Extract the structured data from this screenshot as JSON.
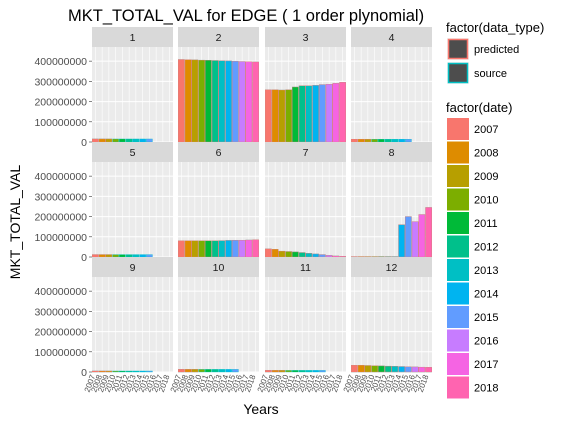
{
  "chart_data": {
    "type": "bar",
    "title": "MKT_TOTAL_VAL for EDGE ( 1  order plynomial)",
    "xlabel": "Years",
    "ylabel": "MKT_TOTAL_VAL",
    "ylim": [
      0,
      470000000
    ],
    "y_ticks": [
      0,
      100000000,
      200000000,
      300000000,
      400000000
    ],
    "y_tick_labels": [
      "0",
      "100000000",
      "200000000",
      "300000000",
      "400000000"
    ],
    "x_tick_labels": [
      "2007",
      "2008",
      "2009",
      "2010",
      "2011",
      "2012",
      "2013",
      "2014",
      "2015",
      "2016",
      "2017",
      "2018"
    ],
    "categories": [
      "2007",
      "2008",
      "2009",
      "2010",
      "2011",
      "2012",
      "2013",
      "2014",
      "2015",
      "2016",
      "2017",
      "2018"
    ],
    "grid": true,
    "facet_layout": {
      "rows": 3,
      "cols": 4
    },
    "panels": [
      {
        "name": "1",
        "source_values": [
          15000000,
          15000000,
          15000000,
          15000000,
          15000000,
          15000000,
          15000000,
          15000000,
          15000000
        ],
        "predicted_values": [
          15000000,
          15000000,
          15000000
        ]
      },
      {
        "name": "2",
        "source_values": [
          408000000,
          407000000,
          406000000,
          405000000,
          404000000,
          403000000,
          402000000,
          401000000,
          400000000,
          398000000,
          397000000,
          396000000
        ],
        "predicted_values": [
          408000000,
          407000000,
          406000000,
          405000000,
          404000000,
          403000000,
          402000000,
          401000000,
          400000000,
          398000000,
          397000000,
          396000000
        ]
      },
      {
        "name": "3",
        "source_values": [
          258000000,
          258000000,
          257000000,
          258000000,
          272000000,
          278000000,
          278000000,
          280000000,
          284000000,
          286000000,
          290000000,
          295000000
        ],
        "predicted_values": [
          258000000,
          258000000,
          257000000,
          258000000,
          272000000,
          278000000,
          278000000,
          280000000,
          284000000,
          286000000,
          290000000,
          295000000
        ]
      },
      {
        "name": "4",
        "source_values": [
          14000000,
          14000000,
          14000000,
          14000000,
          14000000,
          14000000,
          14000000,
          14000000,
          14000000
        ],
        "predicted_values": [
          14000000,
          14000000,
          14000000
        ]
      },
      {
        "name": "5",
        "source_values": [
          12000000,
          12000000,
          12000000,
          12000000,
          12000000,
          12000000,
          12000000,
          12000000,
          12000000
        ],
        "predicted_values": [
          12000000,
          12000000,
          12000000
        ]
      },
      {
        "name": "6",
        "source_values": [
          80000000,
          80000000,
          80000000,
          80000000,
          80000000,
          80000000,
          81000000,
          82000000,
          83000000,
          83000000,
          84000000,
          85000000
        ],
        "predicted_values": [
          80000000,
          80000000,
          80000000,
          80000000,
          80000000,
          80000000,
          81000000,
          82000000,
          83000000,
          83000000,
          84000000,
          85000000
        ]
      },
      {
        "name": "7",
        "source_values": [
          40000000,
          38000000,
          29000000,
          27000000,
          25000000,
          22000000,
          18000000,
          15000000,
          12000000,
          8000000,
          5000000,
          3000000
        ],
        "predicted_values": [
          40000000,
          38000000,
          29000000,
          27000000,
          25000000,
          22000000,
          18000000,
          15000000,
          12000000,
          8000000,
          5000000,
          3000000
        ]
      },
      {
        "name": "8",
        "source_values": [
          2000000,
          2000000,
          2000000,
          2000000,
          2000000,
          2000000,
          2000000,
          160000000,
          200000000,
          175000000,
          210000000,
          245000000
        ],
        "predicted_values": [
          2000000,
          2000000,
          2000000,
          2000000,
          2000000,
          2000000,
          2000000,
          160000000,
          200000000,
          175000000,
          210000000,
          245000000
        ]
      },
      {
        "name": "9",
        "source_values": [
          5000000,
          5000000,
          5000000,
          5000000,
          5000000,
          5000000,
          5000000,
          5000000,
          5000000
        ],
        "predicted_values": [
          5000000,
          5000000,
          5000000
        ]
      },
      {
        "name": "10",
        "source_values": [
          13000000,
          13000000,
          13000000,
          13000000,
          13000000,
          13000000,
          13000000,
          13000000,
          13000000
        ],
        "predicted_values": [
          13000000,
          13000000,
          13000000
        ]
      },
      {
        "name": "11",
        "source_values": [
          8000000,
          8000000,
          8000000,
          8000000,
          8000000,
          8000000,
          8000000,
          8000000,
          8000000
        ],
        "predicted_values": [
          8000000,
          8000000,
          8000000
        ]
      },
      {
        "name": "12",
        "source_values": [
          33000000,
          33000000,
          32000000,
          31000000,
          30000000,
          29000000,
          28000000,
          27000000,
          26000000,
          25000000,
          24000000,
          23000000
        ],
        "predicted_values": [
          33000000,
          33000000,
          32000000,
          31000000,
          30000000,
          29000000,
          28000000,
          27000000,
          26000000,
          25000000,
          24000000,
          23000000
        ]
      }
    ],
    "legend": {
      "placement": "right",
      "data_type_title": "factor(data_type)",
      "data_type_items": [
        {
          "label": "predicted",
          "outline": "#f8766d"
        },
        {
          "label": "source",
          "outline": "#00bfc4"
        }
      ],
      "date_title": "factor(date)",
      "date_items": [
        {
          "label": "2007",
          "color": "#f8766d"
        },
        {
          "label": "2008",
          "color": "#de8c00"
        },
        {
          "label": "2009",
          "color": "#b79f00"
        },
        {
          "label": "2010",
          "color": "#7cae00"
        },
        {
          "label": "2011",
          "color": "#00ba38"
        },
        {
          "label": "2012",
          "color": "#00c08b"
        },
        {
          "label": "2013",
          "color": "#00bfc4"
        },
        {
          "label": "2014",
          "color": "#00b4f0"
        },
        {
          "label": "2015",
          "color": "#619cff"
        },
        {
          "label": "2016",
          "color": "#c77cff"
        },
        {
          "label": "2017",
          "color": "#f564e3"
        },
        {
          "label": "2018",
          "color": "#ff64b0"
        }
      ]
    },
    "colors": {
      "panel_background": "#ebebeb",
      "strip_background": "#d9d9d9",
      "gridline": "#ffffff",
      "swatch_fill": "#4d4d4d"
    }
  }
}
